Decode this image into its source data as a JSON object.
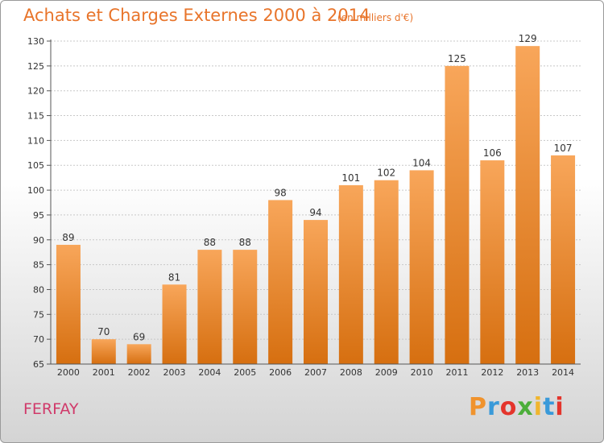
{
  "header": {
    "title": "Achats et Charges Externes 2000 à 2014",
    "unit": "(en milliers d'€)"
  },
  "footer": {
    "place": "FERFAY",
    "logo_letters": [
      "P",
      "r",
      "o",
      "x",
      "i",
      "t",
      "i"
    ],
    "logo_colors": [
      "#f0932d",
      "#3a9ad9",
      "#e4352c",
      "#4cae3b",
      "#f0b52d",
      "#3a9ad9",
      "#e4352c"
    ]
  },
  "colors": {
    "bar_light": "#f8a65a",
    "bar_dark": "#d66f10",
    "grid": "#c8c8c8",
    "axis": "#555555"
  },
  "chart_data": {
    "type": "bar",
    "categories": [
      "2000",
      "2001",
      "2002",
      "2003",
      "2004",
      "2005",
      "2006",
      "2007",
      "2008",
      "2009",
      "2010",
      "2011",
      "2012",
      "2013",
      "2014"
    ],
    "values": [
      89,
      70,
      69,
      81,
      88,
      88,
      98,
      94,
      101,
      102,
      104,
      125,
      106,
      129,
      107
    ],
    "data_labels": [
      "89",
      "70",
      "69",
      "81",
      "88",
      "88",
      "98",
      "94",
      "101",
      "102",
      "104",
      "125",
      "106",
      "129",
      "107"
    ],
    "yticks": [
      65,
      70,
      75,
      80,
      85,
      90,
      95,
      100,
      105,
      110,
      115,
      120,
      125,
      130
    ],
    "ytick_labels": [
      "65",
      "70",
      "75",
      "80",
      "85",
      "90",
      "95",
      "100",
      "105",
      "110",
      "115",
      "120",
      "125",
      "130"
    ],
    "ylim": [
      65,
      130
    ],
    "grid": true,
    "title": "Achats et Charges Externes 2000 à 2014",
    "xlabel": "",
    "ylabel": ""
  }
}
